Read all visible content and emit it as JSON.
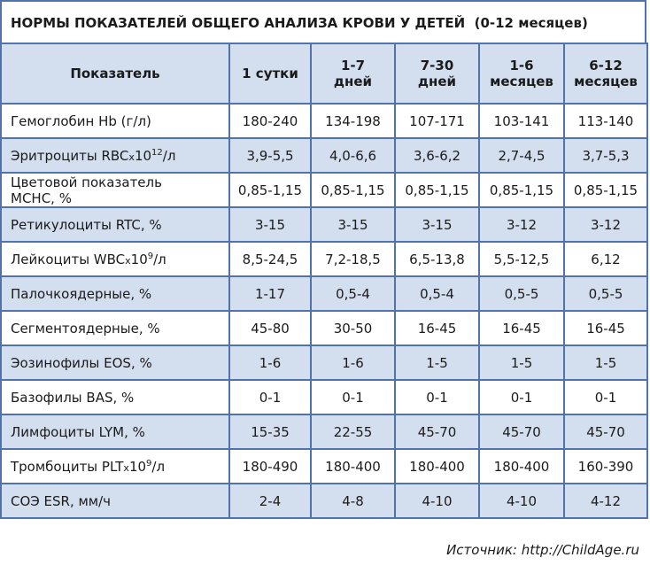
{
  "title": "НОРМЫ ПОКАЗАТЕЛЕЙ ОБЩЕГО АНАЛИЗА КРОВИ У ДЕТЕЙ  (0-12 месяцев)",
  "table": {
    "header": [
      "Показатель",
      "1 сутки",
      "1-7\nдней",
      "7-30\nдней",
      "1-6\nмесяцев",
      "6-12\nмесяцев"
    ],
    "rows": [
      {
        "label": "Гемоглобин Hb (г/л)",
        "values": [
          "180-240",
          "134-198",
          "107-171",
          "103-141",
          "113-140"
        ]
      },
      {
        "label": {
          "pre": "Эритроциты RBC",
          "times": "x",
          "base": "10",
          "sup": "12",
          "post": "/л"
        },
        "values": [
          "3,9-5,5",
          "4,0-6,6",
          "3,6-6,2",
          "2,7-4,5",
          "3,7-5,3"
        ]
      },
      {
        "label": "Цветовой показатель\nMCHC, %",
        "values": [
          "0,85-1,15",
          "0,85-1,15",
          "0,85-1,15",
          "0,85-1,15",
          "0,85-1,15"
        ]
      },
      {
        "label": "Ретикулоциты RTC, %",
        "values": [
          "3-15",
          "3-15",
          "3-15",
          "3-12",
          "3-12"
        ]
      },
      {
        "label": {
          "pre": "Лейкоциты WBC",
          "times": "x",
          "base": "10",
          "sup": "9",
          "post": "/л"
        },
        "values": [
          "8,5-24,5",
          "7,2-18,5",
          "6,5-13,8",
          "5,5-12,5",
          "6,12"
        ]
      },
      {
        "label": "Палочкоядерные, %",
        "values": [
          "1-17",
          "0,5-4",
          "0,5-4",
          "0,5-5",
          "0,5-5"
        ]
      },
      {
        "label": "Сегментоядерные, %",
        "values": [
          "45-80",
          "30-50",
          "16-45",
          "16-45",
          "16-45"
        ]
      },
      {
        "label": "Эозинофилы EOS, %",
        "values": [
          "1-6",
          "1-6",
          "1-5",
          "1-5",
          "1-5"
        ]
      },
      {
        "label": "Базофилы BAS, %",
        "values": [
          "0-1",
          "0-1",
          "0-1",
          "0-1",
          "0-1"
        ]
      },
      {
        "label": "Лимфоциты LYM, %",
        "values": [
          "15-35",
          "22-55",
          "45-70",
          "45-70",
          "45-70"
        ]
      },
      {
        "label": {
          "pre": "Тромбоциты PLT",
          "times": "x",
          "base": "10",
          "sup": "9",
          "post": "/л"
        },
        "values": [
          "180-490",
          "180-400",
          "180-400",
          "180-400",
          "160-390"
        ]
      },
      {
        "label": "СОЭ ESR, мм/ч",
        "values": [
          "2-4",
          "4-8",
          "4-10",
          "4-10",
          "4-12"
        ]
      }
    ]
  },
  "source": "Источник: http://ChildAge.ru"
}
